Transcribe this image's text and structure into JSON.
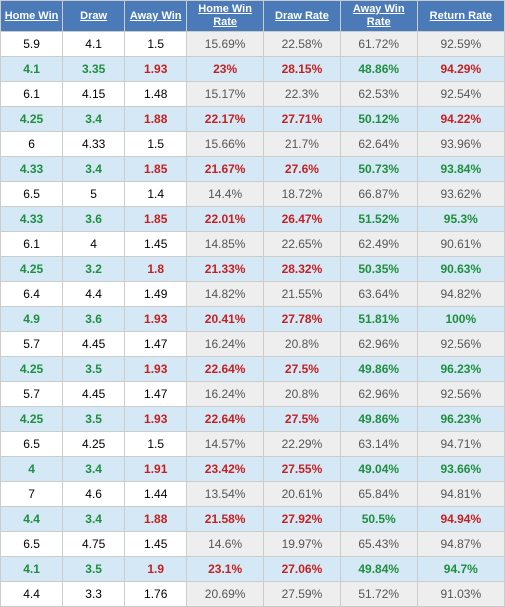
{
  "table": {
    "columns": [
      {
        "label": "Home Win",
        "class": "col-odds"
      },
      {
        "label": "Draw",
        "class": "col-odds"
      },
      {
        "label": "Away Win",
        "class": "col-odds"
      },
      {
        "label": "Home Win Rate",
        "class": "col-rate"
      },
      {
        "label": "Draw Rate",
        "class": "col-rate"
      },
      {
        "label": "Away Win Rate",
        "class": "col-rate"
      },
      {
        "label": "Return Rate",
        "class": "col-return"
      }
    ],
    "rows": [
      {
        "highlight": false,
        "cells": [
          "5.9",
          "4.1",
          "1.5",
          "15.69%",
          "22.58%",
          "61.72%",
          "92.59%"
        ]
      },
      {
        "highlight": true,
        "cells": [
          "4.1",
          "3.35",
          "1.93",
          "23%",
          "28.15%",
          "48.86%",
          "94.29%"
        ],
        "returnRed": true
      },
      {
        "highlight": false,
        "cells": [
          "6.1",
          "4.15",
          "1.48",
          "15.17%",
          "22.3%",
          "62.53%",
          "92.54%"
        ]
      },
      {
        "highlight": true,
        "cells": [
          "4.25",
          "3.4",
          "1.88",
          "22.17%",
          "27.71%",
          "50.12%",
          "94.22%"
        ],
        "returnRed": true
      },
      {
        "highlight": false,
        "cells": [
          "6",
          "4.33",
          "1.5",
          "15.66%",
          "21.7%",
          "62.64%",
          "93.96%"
        ]
      },
      {
        "highlight": true,
        "cells": [
          "4.33",
          "3.4",
          "1.85",
          "21.67%",
          "27.6%",
          "50.73%",
          "93.84%"
        ]
      },
      {
        "highlight": false,
        "cells": [
          "6.5",
          "5",
          "1.4",
          "14.4%",
          "18.72%",
          "66.87%",
          "93.62%"
        ]
      },
      {
        "highlight": true,
        "cells": [
          "4.33",
          "3.6",
          "1.85",
          "22.01%",
          "26.47%",
          "51.52%",
          "95.3%"
        ]
      },
      {
        "highlight": false,
        "cells": [
          "6.1",
          "4",
          "1.45",
          "14.85%",
          "22.65%",
          "62.49%",
          "90.61%"
        ]
      },
      {
        "highlight": true,
        "cells": [
          "4.25",
          "3.2",
          "1.8",
          "21.33%",
          "28.32%",
          "50.35%",
          "90.63%"
        ]
      },
      {
        "highlight": false,
        "cells": [
          "6.4",
          "4.4",
          "1.49",
          "14.82%",
          "21.55%",
          "63.64%",
          "94.82%"
        ]
      },
      {
        "highlight": true,
        "cells": [
          "4.9",
          "3.6",
          "1.93",
          "20.41%",
          "27.78%",
          "51.81%",
          "100%"
        ]
      },
      {
        "highlight": false,
        "cells": [
          "5.7",
          "4.45",
          "1.47",
          "16.24%",
          "20.8%",
          "62.96%",
          "92.56%"
        ]
      },
      {
        "highlight": true,
        "cells": [
          "4.25",
          "3.5",
          "1.93",
          "22.64%",
          "27.5%",
          "49.86%",
          "96.23%"
        ]
      },
      {
        "highlight": false,
        "cells": [
          "5.7",
          "4.45",
          "1.47",
          "16.24%",
          "20.8%",
          "62.96%",
          "92.56%"
        ]
      },
      {
        "highlight": true,
        "cells": [
          "4.25",
          "3.5",
          "1.93",
          "22.64%",
          "27.5%",
          "49.86%",
          "96.23%"
        ]
      },
      {
        "highlight": false,
        "cells": [
          "6.5",
          "4.25",
          "1.5",
          "14.57%",
          "22.29%",
          "63.14%",
          "94.71%"
        ]
      },
      {
        "highlight": true,
        "cells": [
          "4",
          "3.4",
          "1.91",
          "23.42%",
          "27.55%",
          "49.04%",
          "93.66%"
        ]
      },
      {
        "highlight": false,
        "cells": [
          "7",
          "4.6",
          "1.44",
          "13.54%",
          "20.61%",
          "65.84%",
          "94.81%"
        ]
      },
      {
        "highlight": true,
        "cells": [
          "4.4",
          "3.4",
          "1.88",
          "21.58%",
          "27.92%",
          "50.5%",
          "94.94%"
        ],
        "returnRed": true
      },
      {
        "highlight": false,
        "cells": [
          "6.5",
          "4.75",
          "1.45",
          "14.6%",
          "19.97%",
          "65.43%",
          "94.87%"
        ]
      },
      {
        "highlight": true,
        "cells": [
          "4.1",
          "3.5",
          "1.9",
          "23.1%",
          "27.06%",
          "49.84%",
          "94.7%"
        ]
      },
      {
        "highlight": false,
        "cells": [
          "4.4",
          "3.3",
          "1.76",
          "20.69%",
          "27.59%",
          "51.72%",
          "91.03%"
        ]
      }
    ],
    "header_bg": "#4a7ab7",
    "header_fg": "#ffffff",
    "highlight_bg": "#d5e8f5",
    "rate_bg_normal": "#eeeeee",
    "green": "#1e8f3e",
    "red": "#c52020",
    "border": "#ccc"
  }
}
